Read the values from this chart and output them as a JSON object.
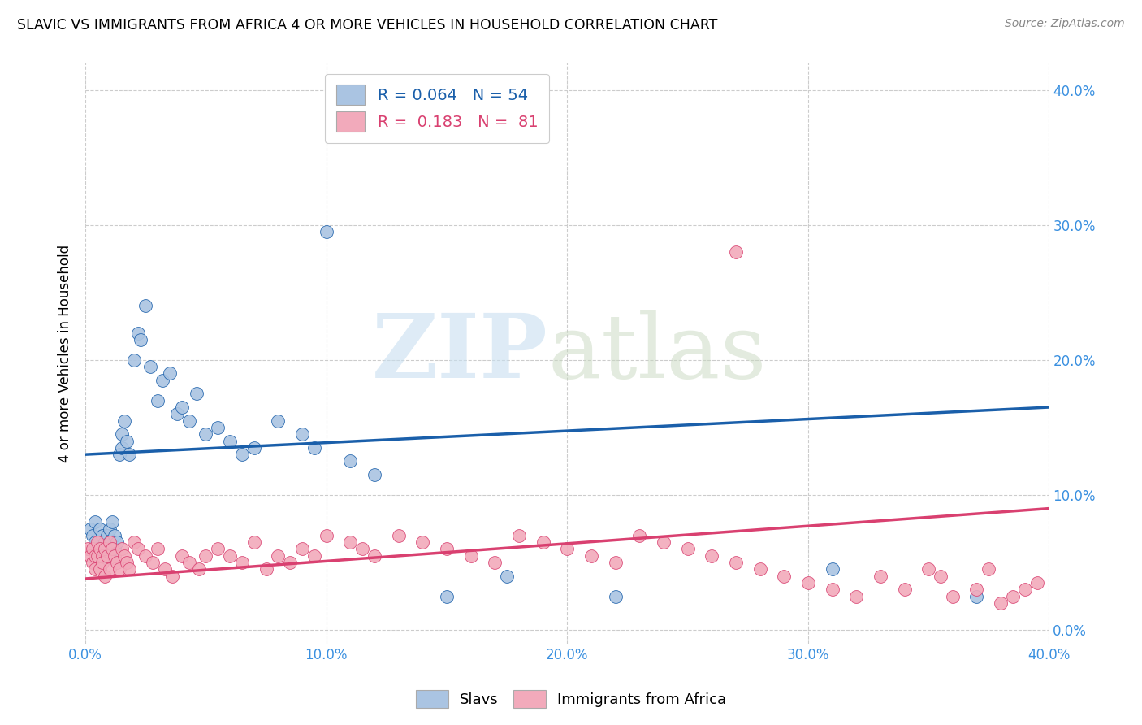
{
  "title": "SLAVIC VS IMMIGRANTS FROM AFRICA 4 OR MORE VEHICLES IN HOUSEHOLD CORRELATION CHART",
  "source": "Source: ZipAtlas.com",
  "ylabel": "4 or more Vehicles in Household",
  "legend_label1": "Slavs",
  "legend_label2": "Immigrants from Africa",
  "R1": 0.064,
  "N1": 54,
  "R2": 0.183,
  "N2": 81,
  "xlim": [
    0.0,
    0.4
  ],
  "ylim": [
    -0.01,
    0.42
  ],
  "xticks": [
    0.0,
    0.1,
    0.2,
    0.3,
    0.4
  ],
  "yticks": [
    0.0,
    0.1,
    0.2,
    0.3,
    0.4
  ],
  "xtick_labels": [
    "0.0%",
    "10.0%",
    "20.0%",
    "30.0%",
    "40.0%"
  ],
  "ytick_labels": [
    "0.0%",
    "10.0%",
    "20.0%",
    "30.0%",
    "40.0%"
  ],
  "color_slavs": "#aac4e2",
  "color_africa": "#f2aabb",
  "line_color_slavs": "#1a5faa",
  "line_color_africa": "#d94070",
  "slavs_x": [
    0.002,
    0.003,
    0.004,
    0.004,
    0.005,
    0.005,
    0.006,
    0.006,
    0.007,
    0.007,
    0.008,
    0.008,
    0.009,
    0.009,
    0.01,
    0.01,
    0.011,
    0.012,
    0.012,
    0.013,
    0.014,
    0.015,
    0.015,
    0.016,
    0.017,
    0.018,
    0.02,
    0.022,
    0.023,
    0.025,
    0.027,
    0.03,
    0.032,
    0.035,
    0.038,
    0.04,
    0.043,
    0.046,
    0.05,
    0.055,
    0.06,
    0.065,
    0.07,
    0.08,
    0.09,
    0.095,
    0.1,
    0.11,
    0.12,
    0.15,
    0.175,
    0.22,
    0.31,
    0.37
  ],
  "slavs_y": [
    0.075,
    0.07,
    0.08,
    0.065,
    0.06,
    0.055,
    0.075,
    0.06,
    0.07,
    0.05,
    0.065,
    0.055,
    0.07,
    0.06,
    0.075,
    0.065,
    0.08,
    0.07,
    0.06,
    0.065,
    0.13,
    0.135,
    0.145,
    0.155,
    0.14,
    0.13,
    0.2,
    0.22,
    0.215,
    0.24,
    0.195,
    0.17,
    0.185,
    0.19,
    0.16,
    0.165,
    0.155,
    0.175,
    0.145,
    0.15,
    0.14,
    0.13,
    0.135,
    0.155,
    0.145,
    0.135,
    0.295,
    0.125,
    0.115,
    0.025,
    0.04,
    0.025,
    0.045,
    0.025
  ],
  "africa_x": [
    0.001,
    0.002,
    0.003,
    0.003,
    0.004,
    0.004,
    0.005,
    0.005,
    0.006,
    0.006,
    0.007,
    0.007,
    0.008,
    0.008,
    0.009,
    0.01,
    0.01,
    0.011,
    0.012,
    0.013,
    0.014,
    0.015,
    0.016,
    0.017,
    0.018,
    0.02,
    0.022,
    0.025,
    0.028,
    0.03,
    0.033,
    0.036,
    0.04,
    0.043,
    0.047,
    0.05,
    0.055,
    0.06,
    0.065,
    0.07,
    0.075,
    0.08,
    0.085,
    0.09,
    0.095,
    0.1,
    0.11,
    0.115,
    0.12,
    0.13,
    0.14,
    0.15,
    0.16,
    0.17,
    0.18,
    0.19,
    0.2,
    0.21,
    0.22,
    0.23,
    0.24,
    0.25,
    0.26,
    0.27,
    0.28,
    0.29,
    0.3,
    0.31,
    0.32,
    0.33,
    0.34,
    0.35,
    0.355,
    0.36,
    0.37,
    0.375,
    0.38,
    0.385,
    0.39,
    0.395,
    0.27
  ],
  "africa_y": [
    0.06,
    0.055,
    0.06,
    0.05,
    0.055,
    0.045,
    0.065,
    0.055,
    0.06,
    0.045,
    0.055,
    0.05,
    0.06,
    0.04,
    0.055,
    0.065,
    0.045,
    0.06,
    0.055,
    0.05,
    0.045,
    0.06,
    0.055,
    0.05,
    0.045,
    0.065,
    0.06,
    0.055,
    0.05,
    0.06,
    0.045,
    0.04,
    0.055,
    0.05,
    0.045,
    0.055,
    0.06,
    0.055,
    0.05,
    0.065,
    0.045,
    0.055,
    0.05,
    0.06,
    0.055,
    0.07,
    0.065,
    0.06,
    0.055,
    0.07,
    0.065,
    0.06,
    0.055,
    0.05,
    0.07,
    0.065,
    0.06,
    0.055,
    0.05,
    0.07,
    0.065,
    0.06,
    0.055,
    0.05,
    0.045,
    0.04,
    0.035,
    0.03,
    0.025,
    0.04,
    0.03,
    0.045,
    0.04,
    0.025,
    0.03,
    0.045,
    0.02,
    0.025,
    0.03,
    0.035,
    0.28
  ],
  "blue_line_x": [
    0.0,
    0.4
  ],
  "blue_line_y": [
    0.13,
    0.165
  ],
  "pink_line_x": [
    0.0,
    0.4
  ],
  "pink_line_y": [
    0.038,
    0.09
  ]
}
